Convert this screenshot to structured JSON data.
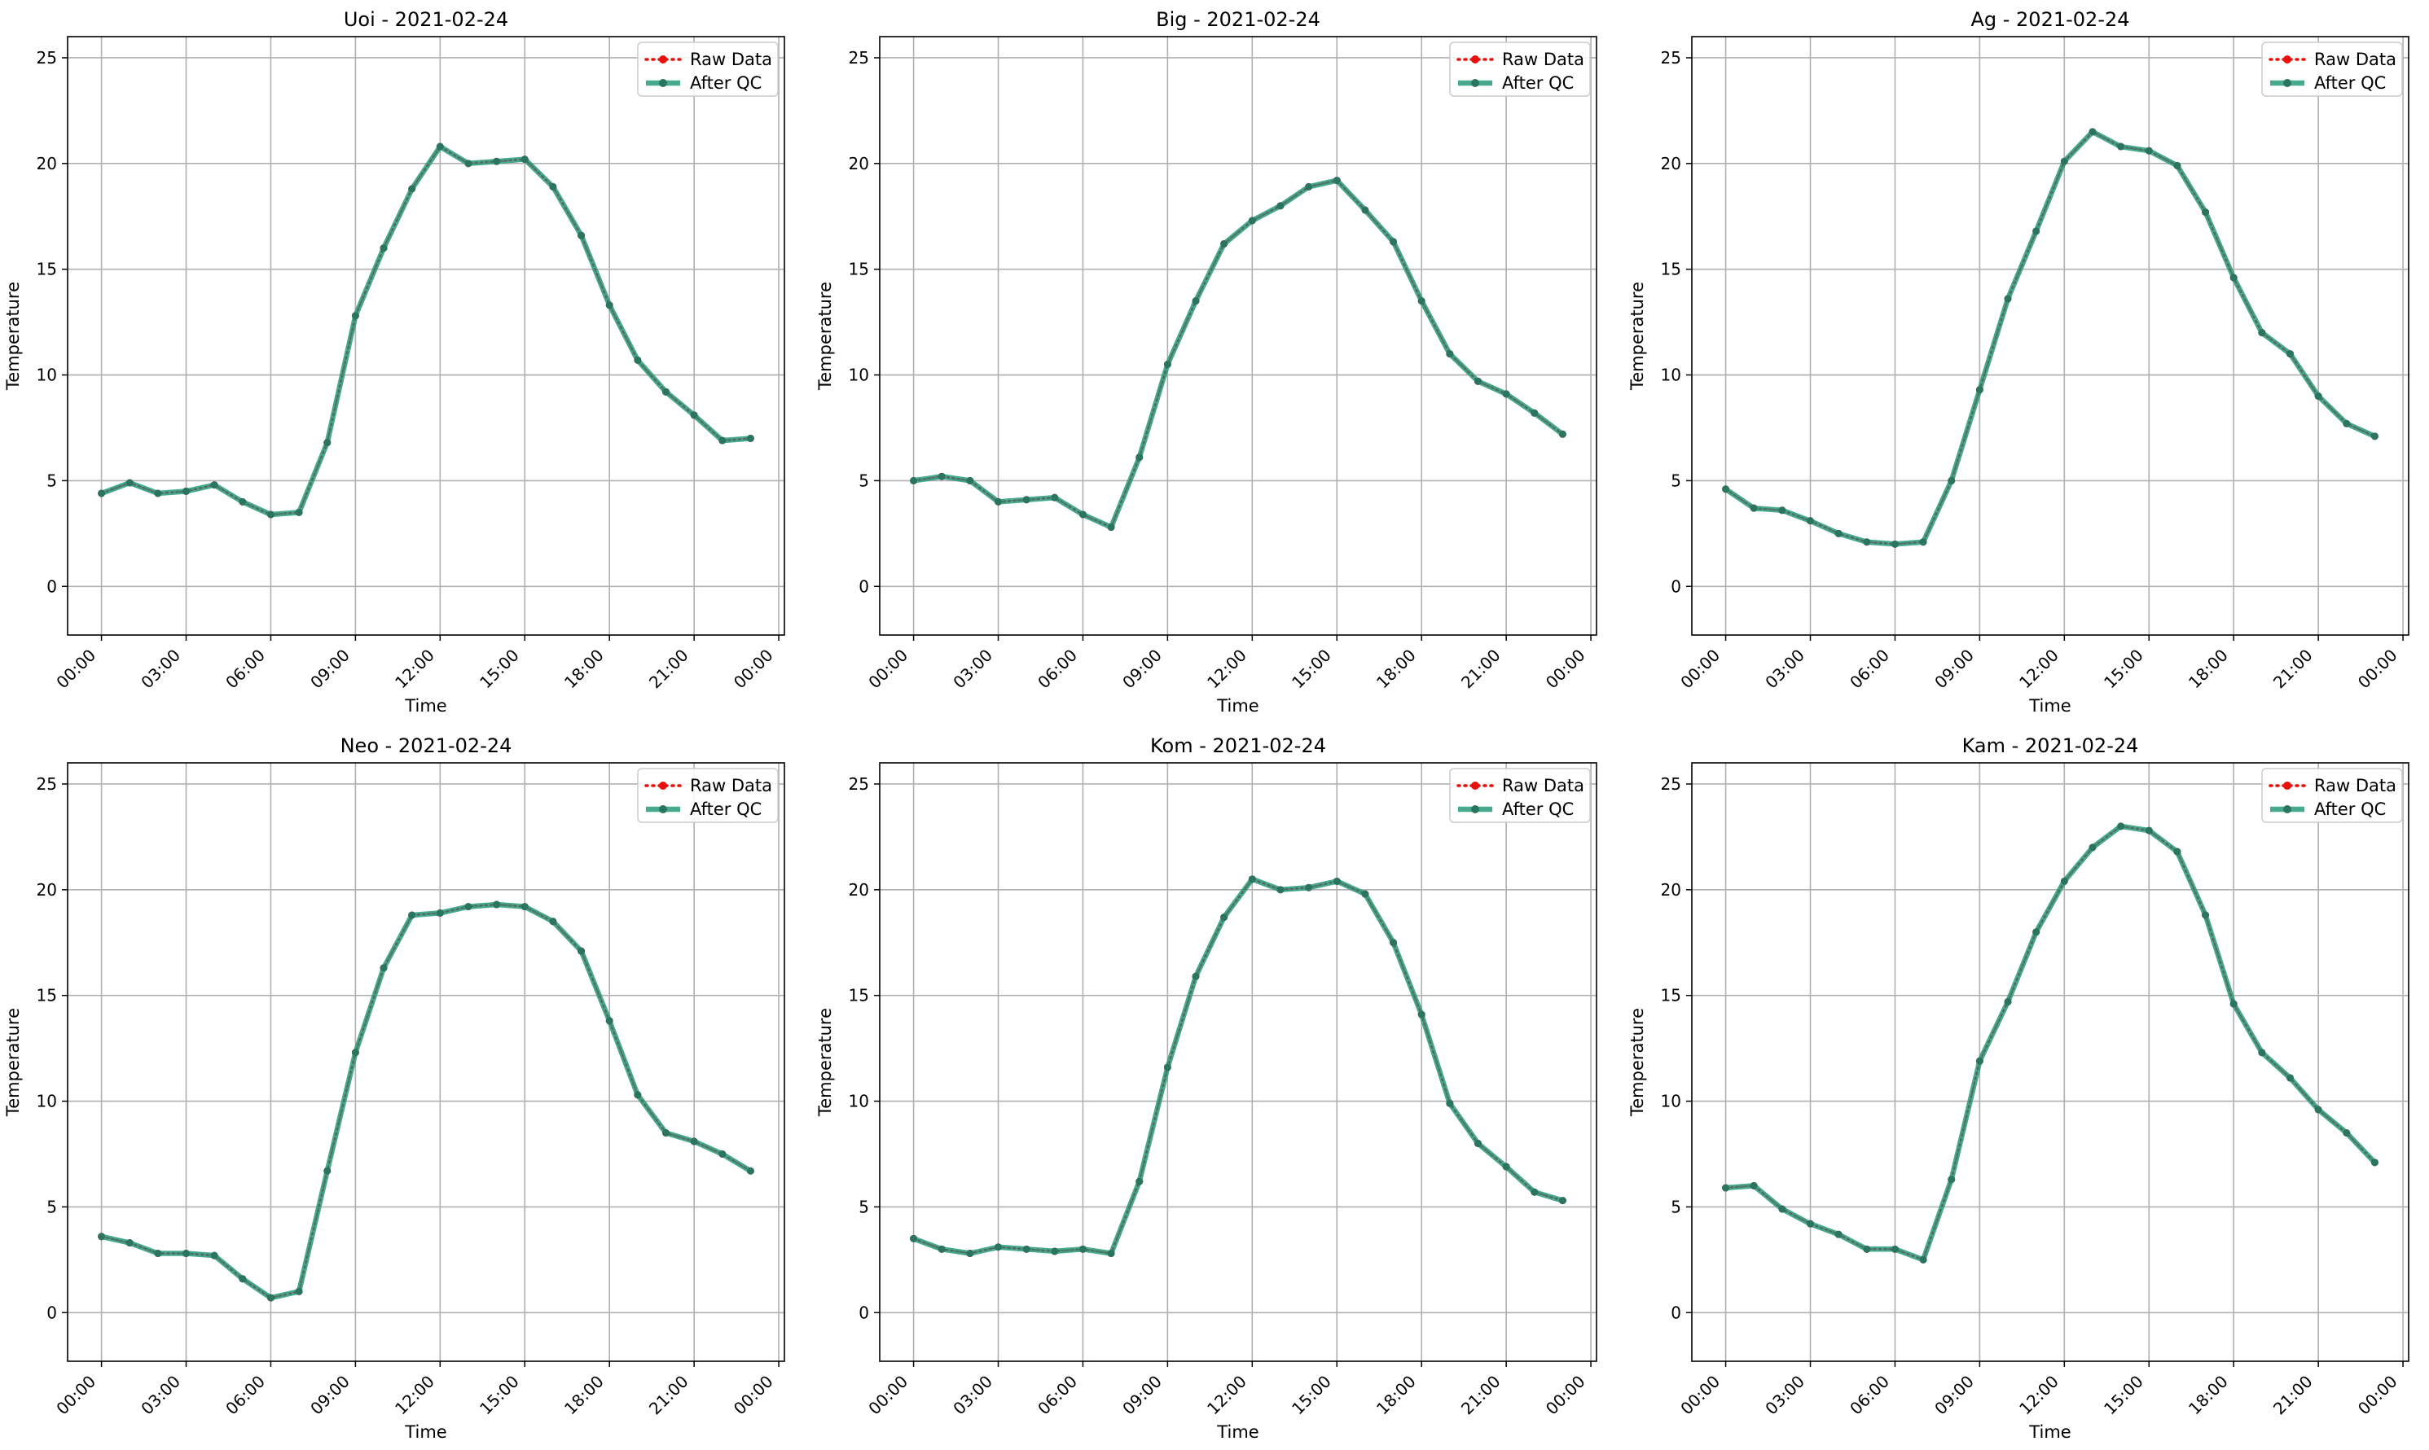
{
  "figure": {
    "ylabel": "Temperature",
    "xlabel": "Time",
    "xtick_labels": [
      "00:00",
      "03:00",
      "06:00",
      "09:00",
      "12:00",
      "15:00",
      "18:00",
      "21:00",
      "00:00"
    ],
    "ytick_values": [
      0,
      5,
      10,
      15,
      20,
      25
    ],
    "legend": [
      {
        "label": "Raw Data",
        "color": "#e8120c",
        "style": "dotted"
      },
      {
        "label": "After QC",
        "color": "#2e9e7e",
        "style": "solid"
      }
    ]
  },
  "chart_data": [
    {
      "type": "line",
      "title": "Uoi - 2021-02-24",
      "xlabel": "Time",
      "ylabel": "Temperature",
      "x_hours": [
        0,
        1,
        2,
        3,
        4,
        5,
        6,
        7,
        8,
        9,
        10,
        11,
        12,
        13,
        14,
        15,
        16,
        17,
        18,
        19,
        20,
        21,
        22,
        23
      ],
      "xlim": [
        -1.2,
        24.2
      ],
      "ylim": [
        -2.3,
        26
      ],
      "grid": true,
      "legend_position": "top-right",
      "series": [
        {
          "name": "Raw Data",
          "values": [
            4.4,
            4.9,
            4.4,
            4.5,
            4.8,
            4.0,
            3.4,
            3.5,
            6.8,
            12.8,
            16.0,
            18.8,
            20.8,
            20.0,
            20.1,
            20.2,
            18.9,
            16.6,
            13.3,
            10.7,
            9.2,
            8.1,
            6.9,
            7.0
          ]
        },
        {
          "name": "After QC",
          "values": [
            4.4,
            4.9,
            4.4,
            4.5,
            4.8,
            4.0,
            3.4,
            3.5,
            6.8,
            12.8,
            16.0,
            18.8,
            20.8,
            20.0,
            20.1,
            20.2,
            18.9,
            16.6,
            13.3,
            10.7,
            9.2,
            8.1,
            6.9,
            7.0
          ]
        }
      ]
    },
    {
      "type": "line",
      "title": "Big - 2021-02-24",
      "xlabel": "Time",
      "ylabel": "Temperature",
      "x_hours": [
        0,
        1,
        2,
        3,
        4,
        5,
        6,
        7,
        8,
        9,
        10,
        11,
        12,
        13,
        14,
        15,
        16,
        17,
        18,
        19,
        20,
        21,
        22,
        23
      ],
      "xlim": [
        -1.2,
        24.2
      ],
      "ylim": [
        -2.3,
        26
      ],
      "grid": true,
      "legend_position": "top-right",
      "series": [
        {
          "name": "Raw Data",
          "values": [
            5.0,
            5.2,
            5.0,
            4.0,
            4.1,
            4.2,
            3.4,
            2.8,
            6.1,
            10.5,
            13.5,
            16.2,
            17.3,
            18.0,
            18.9,
            19.2,
            17.8,
            16.3,
            13.5,
            11.0,
            9.7,
            9.1,
            8.2,
            7.2
          ]
        },
        {
          "name": "After QC",
          "values": [
            5.0,
            5.2,
            5.0,
            4.0,
            4.1,
            4.2,
            3.4,
            2.8,
            6.1,
            10.5,
            13.5,
            16.2,
            17.3,
            18.0,
            18.9,
            19.2,
            17.8,
            16.3,
            13.5,
            11.0,
            9.7,
            9.1,
            8.2,
            7.2
          ]
        }
      ]
    },
    {
      "type": "line",
      "title": "Ag - 2021-02-24",
      "xlabel": "Time",
      "ylabel": "Temperature",
      "x_hours": [
        0,
        1,
        2,
        3,
        4,
        5,
        6,
        7,
        8,
        9,
        10,
        11,
        12,
        13,
        14,
        15,
        16,
        17,
        18,
        19,
        20,
        21,
        22,
        23
      ],
      "xlim": [
        -1.2,
        24.2
      ],
      "ylim": [
        -2.3,
        26
      ],
      "grid": true,
      "legend_position": "top-right",
      "series": [
        {
          "name": "Raw Data",
          "values": [
            4.6,
            3.7,
            3.6,
            3.1,
            2.5,
            2.1,
            2.0,
            2.1,
            5.0,
            9.3,
            13.6,
            16.8,
            20.1,
            21.5,
            20.8,
            20.6,
            19.9,
            17.7,
            14.6,
            12.0,
            11.0,
            9.0,
            7.7,
            7.1
          ]
        },
        {
          "name": "After QC",
          "values": [
            4.6,
            3.7,
            3.6,
            3.1,
            2.5,
            2.1,
            2.0,
            2.1,
            5.0,
            9.3,
            13.6,
            16.8,
            20.1,
            21.5,
            20.8,
            20.6,
            19.9,
            17.7,
            14.6,
            12.0,
            11.0,
            9.0,
            7.7,
            7.1
          ]
        }
      ]
    },
    {
      "type": "line",
      "title": "Neo - 2021-02-24",
      "xlabel": "Time",
      "ylabel": "Temperature",
      "x_hours": [
        0,
        1,
        2,
        3,
        4,
        5,
        6,
        7,
        8,
        9,
        10,
        11,
        12,
        13,
        14,
        15,
        16,
        17,
        18,
        19,
        20,
        21,
        22,
        23
      ],
      "xlim": [
        -1.2,
        24.2
      ],
      "ylim": [
        -2.3,
        26
      ],
      "grid": true,
      "legend_position": "top-right",
      "series": [
        {
          "name": "Raw Data",
          "values": [
            3.6,
            3.3,
            2.8,
            2.8,
            2.7,
            1.6,
            0.7,
            1.0,
            6.7,
            12.3,
            16.3,
            18.8,
            18.9,
            19.2,
            19.3,
            19.2,
            18.5,
            17.1,
            13.8,
            10.3,
            8.5,
            8.1,
            7.5,
            6.7
          ]
        },
        {
          "name": "After QC",
          "values": [
            3.6,
            3.3,
            2.8,
            2.8,
            2.7,
            1.6,
            0.7,
            1.0,
            6.7,
            12.3,
            16.3,
            18.8,
            18.9,
            19.2,
            19.3,
            19.2,
            18.5,
            17.1,
            13.8,
            10.3,
            8.5,
            8.1,
            7.5,
            6.7
          ]
        }
      ]
    },
    {
      "type": "line",
      "title": "Kom - 2021-02-24",
      "xlabel": "Time",
      "ylabel": "Temperature",
      "x_hours": [
        0,
        1,
        2,
        3,
        4,
        5,
        6,
        7,
        8,
        9,
        10,
        11,
        12,
        13,
        14,
        15,
        16,
        17,
        18,
        19,
        20,
        21,
        22,
        23
      ],
      "xlim": [
        -1.2,
        24.2
      ],
      "ylim": [
        -2.3,
        26
      ],
      "grid": true,
      "legend_position": "top-right",
      "series": [
        {
          "name": "Raw Data",
          "values": [
            3.5,
            3.0,
            2.8,
            3.1,
            3.0,
            2.9,
            3.0,
            2.8,
            6.2,
            11.6,
            15.9,
            18.7,
            20.5,
            20.0,
            20.1,
            20.4,
            19.8,
            17.5,
            14.1,
            9.9,
            8.0,
            6.9,
            5.7,
            5.3
          ]
        },
        {
          "name": "After QC",
          "values": [
            3.5,
            3.0,
            2.8,
            3.1,
            3.0,
            2.9,
            3.0,
            2.8,
            6.2,
            11.6,
            15.9,
            18.7,
            20.5,
            20.0,
            20.1,
            20.4,
            19.8,
            17.5,
            14.1,
            9.9,
            8.0,
            6.9,
            5.7,
            5.3
          ]
        }
      ]
    },
    {
      "type": "line",
      "title": "Kam - 2021-02-24",
      "xlabel": "Time",
      "ylabel": "Temperature",
      "x_hours": [
        0,
        1,
        2,
        3,
        4,
        5,
        6,
        7,
        8,
        9,
        10,
        11,
        12,
        13,
        14,
        15,
        16,
        17,
        18,
        19,
        20,
        21,
        22,
        23
      ],
      "xlim": [
        -1.2,
        24.2
      ],
      "ylim": [
        -2.3,
        26
      ],
      "grid": true,
      "legend_position": "top-right",
      "series": [
        {
          "name": "Raw Data",
          "values": [
            5.9,
            6.0,
            4.9,
            4.2,
            3.7,
            3.0,
            3.0,
            2.5,
            6.3,
            11.9,
            14.7,
            18.0,
            20.4,
            22.0,
            23.0,
            22.8,
            21.8,
            18.8,
            14.6,
            12.3,
            11.1,
            9.6,
            8.5,
            7.1
          ]
        },
        {
          "name": "After QC",
          "values": [
            5.9,
            6.0,
            4.9,
            4.2,
            3.7,
            3.0,
            3.0,
            2.5,
            6.3,
            11.9,
            14.7,
            18.0,
            20.4,
            22.0,
            23.0,
            22.8,
            21.8,
            18.8,
            14.6,
            12.3,
            11.1,
            9.6,
            8.5,
            7.1
          ]
        }
      ]
    }
  ]
}
